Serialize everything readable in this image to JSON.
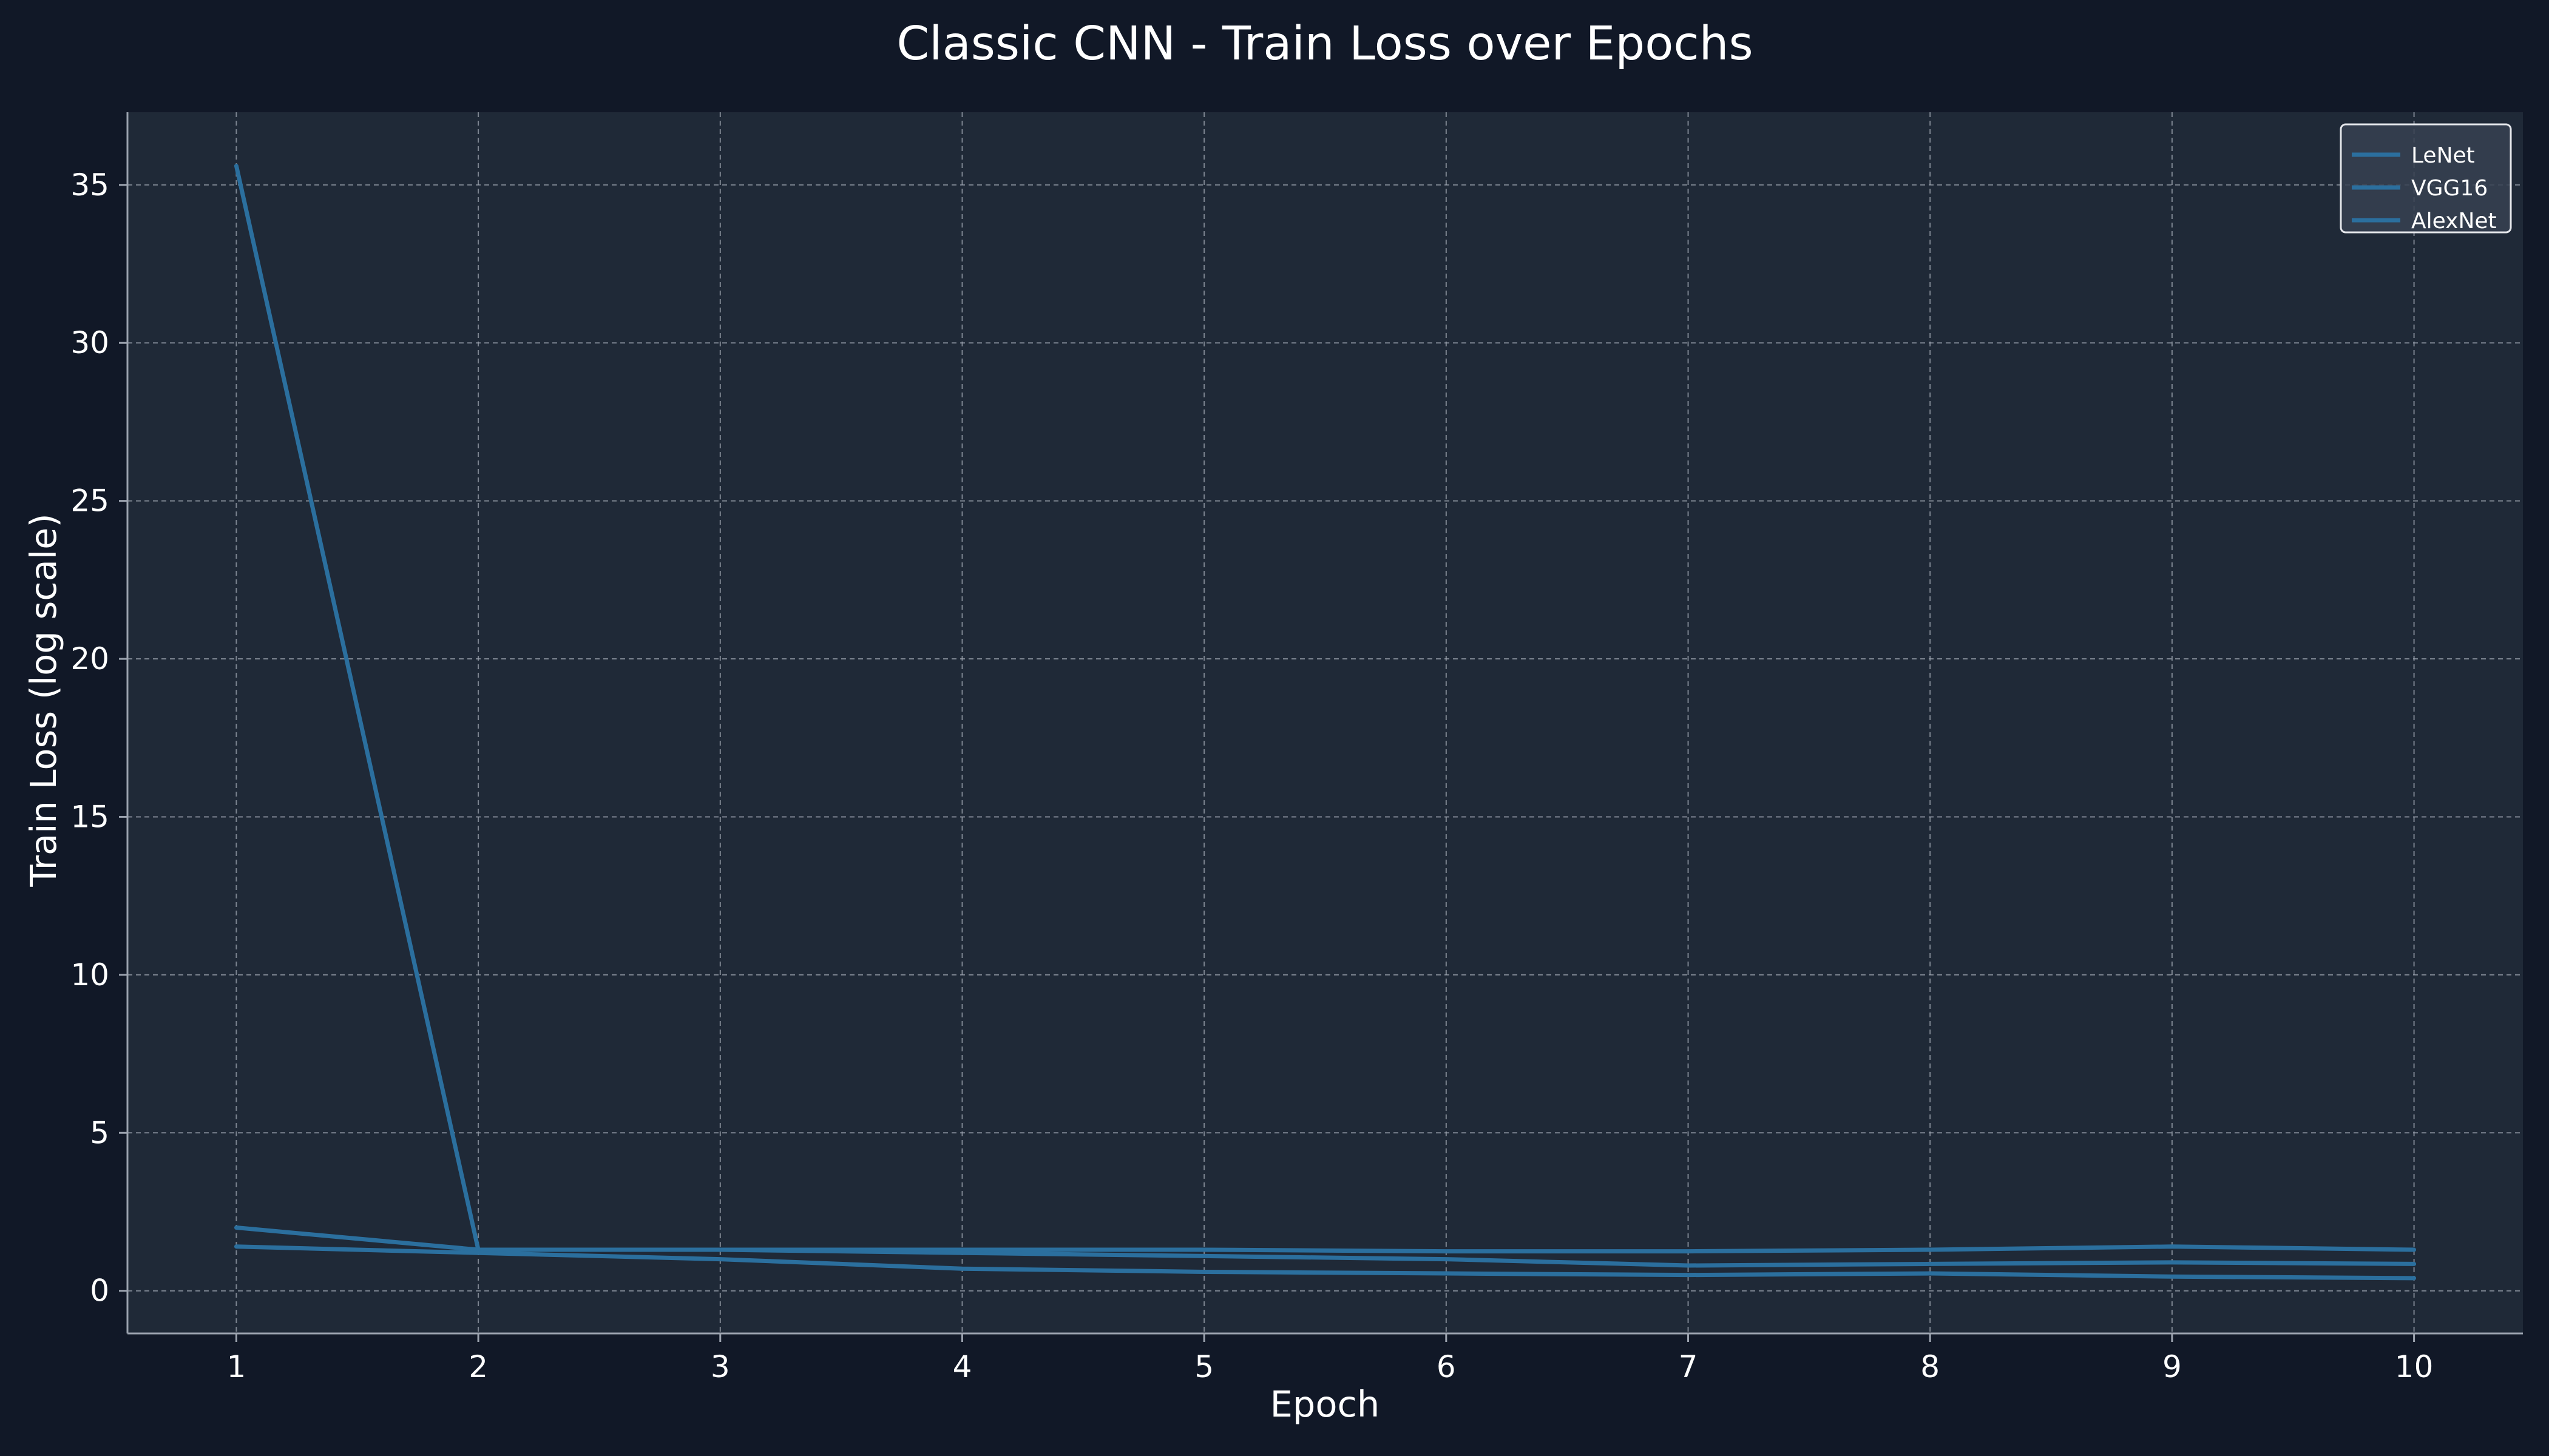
{
  "chart_data": {
    "type": "line",
    "title": "Classic CNN - Train Loss over Epochs",
    "xlabel": "Epoch",
    "ylabel": "Train Loss (log scale)",
    "x": [
      1,
      2,
      3,
      4,
      5,
      6,
      7,
      8,
      9,
      10
    ],
    "xticks": [
      1,
      2,
      3,
      4,
      5,
      6,
      7,
      8,
      9,
      10
    ],
    "yticks": [
      0,
      5,
      10,
      15,
      20,
      25,
      30,
      35
    ],
    "xlim": [
      0.55,
      10.45
    ],
    "ylim": [
      -1.35,
      37.3
    ],
    "grid": true,
    "legend_position": "top-right",
    "series": [
      {
        "name": "LeNet",
        "color": "#2b6f9e",
        "values": [
          35.6,
          1.3,
          1.3,
          1.3,
          1.3,
          1.25,
          1.25,
          1.3,
          1.4,
          1.3
        ]
      },
      {
        "name": "VGG16",
        "color": "#2b6f9e",
        "values": [
          2.0,
          1.3,
          1.3,
          1.2,
          1.1,
          1.0,
          0.8,
          0.85,
          0.9,
          0.85
        ]
      },
      {
        "name": "AlexNet",
        "color": "#2b6f9e",
        "values": [
          1.4,
          1.2,
          1.0,
          0.7,
          0.6,
          0.55,
          0.5,
          0.55,
          0.45,
          0.4
        ]
      }
    ],
    "colors": {
      "background": "#111827",
      "plot_background": "#1f2937",
      "grid": "#9ca3af",
      "axis": "#9ca3af",
      "text": "#ffffff",
      "legend_background": "#374151",
      "legend_border": "#e5e7eb"
    }
  }
}
